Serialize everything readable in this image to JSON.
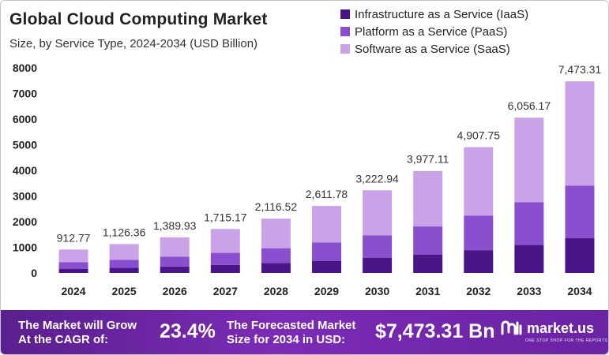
{
  "header": {
    "title": "Global Cloud Computing Market",
    "subtitle": "Size, by Service Type, 2024-2034 (USD Billion)"
  },
  "colors": {
    "iaas": "#4a1587",
    "paas": "#8a4fcf",
    "saas": "#caa2e8",
    "footer_bg": "#6a23a3"
  },
  "chart_data": {
    "type": "bar",
    "stacked": true,
    "title": "Global Cloud Computing Market",
    "subtitle": "Size, by Service Type, 2024-2034 (USD Billion)",
    "categories": [
      "2024",
      "2025",
      "2026",
      "2027",
      "2028",
      "2029",
      "2030",
      "2031",
      "2032",
      "2033",
      "2034"
    ],
    "totals": [
      912.77,
      1126.36,
      1389.93,
      1715.17,
      2116.52,
      2611.78,
      3222.94,
      3977.11,
      4907.75,
      6056.17,
      7473.31
    ],
    "total_labels": [
      "912.77",
      "1,126.36",
      "1,389.93",
      "1,715.17",
      "2,116.52",
      "2,611.78",
      "3,222.94",
      "3,977.11",
      "4,907.75",
      "6,056.17",
      "7,473.31"
    ],
    "series": [
      {
        "name": "Infrastructure as a Service (IaaS)",
        "values": [
          165,
          204,
          252,
          311,
          383,
          473,
          584,
          720,
          889,
          1097,
          1354
        ]
      },
      {
        "name": "Platform as a Service (PaaS)",
        "values": [
          251,
          310,
          382,
          472,
          582,
          718,
          886,
          1094,
          1350,
          1665,
          2055
        ]
      },
      {
        "name": "Software as a Service (SaaS)",
        "values": [
          497,
          612,
          756,
          932,
          1152,
          1421,
          1753,
          2163,
          2669,
          3294,
          4064
        ]
      }
    ],
    "yticks": [
      "8000",
      "7000",
      "6000",
      "5000",
      "4000",
      "3000",
      "2000",
      "1000",
      "0"
    ],
    "ylim": [
      0,
      8000
    ],
    "legend_position": "top-right",
    "grid": false
  },
  "footer": {
    "grow_line1": "The Market will Grow",
    "grow_line2": "At the CAGR of:",
    "cagr": "23.4%",
    "forecast_line1": "The Forecasted Market",
    "forecast_line2": "Size for 2034 in USD:",
    "forecast_value": "$7,473.31 Bn",
    "brand_name": "market.us",
    "brand_tagline": "ONE STOP SHOP FOR THE REPORTS",
    "brand_icon": "market-us-logo-icon"
  }
}
